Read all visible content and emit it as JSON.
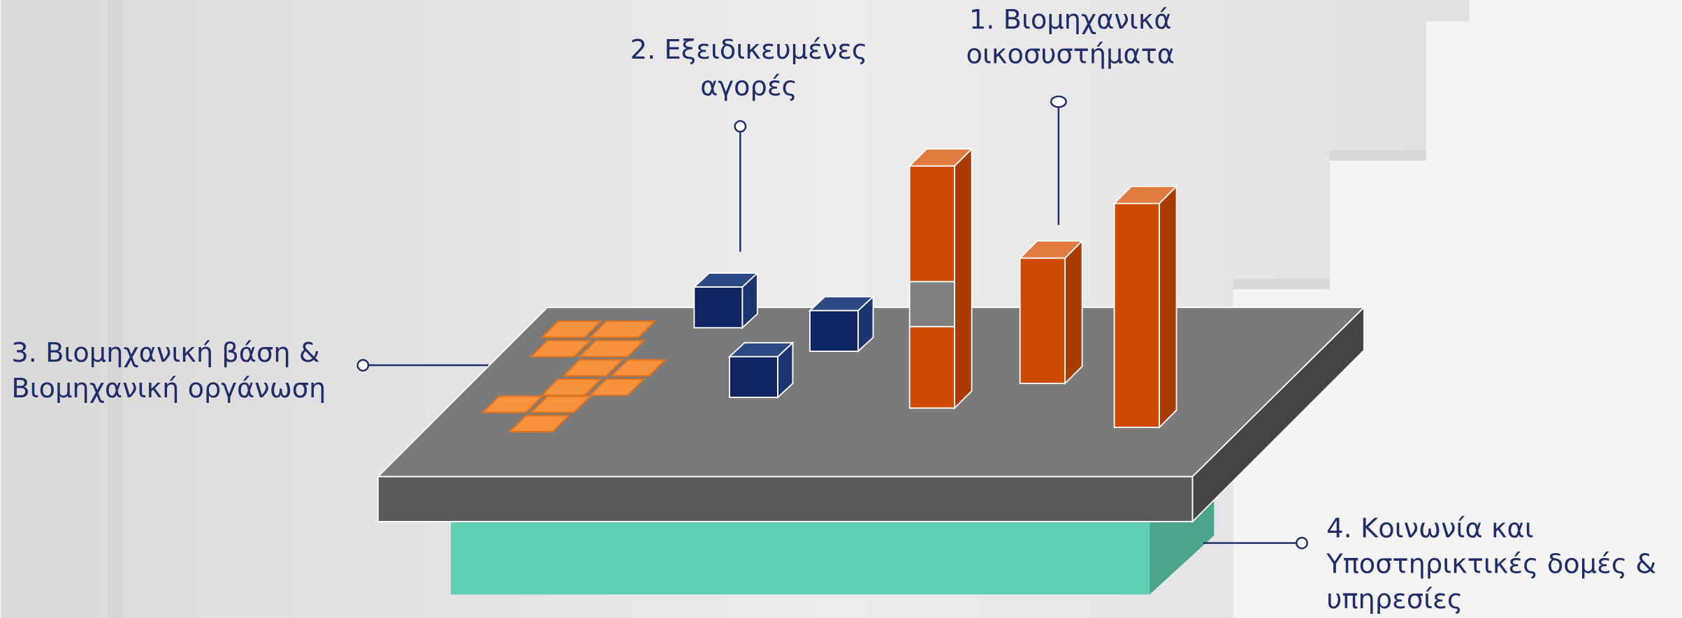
{
  "labels": [
    {
      "lines": [
        "1. Βιομηχανικά",
        "οικοσυστήματα"
      ]
    },
    {
      "lines": [
        "2. Εξειδικευμένες",
        "αγορές"
      ]
    },
    {
      "lines": [
        "3. Βιομηχανική βάση &",
        "Βιομηχανική οργάνωση"
      ]
    },
    {
      "lines": [
        "4. Κοινωνία και",
        "Υποστηρικτικές δομές &",
        "υπηρεσίες"
      ]
    }
  ]
}
